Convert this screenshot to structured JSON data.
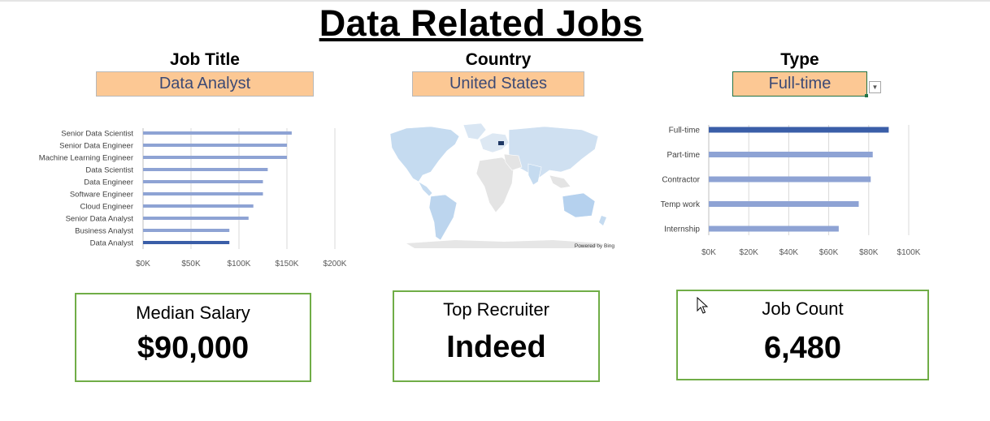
{
  "dashboard": {
    "title": "Data Related Jobs"
  },
  "slicers": {
    "job_title": {
      "label": "Job Title",
      "value": "Data Analyst"
    },
    "country": {
      "label": "Country",
      "value": "United States"
    },
    "type": {
      "label": "Type",
      "value": "Full-time"
    }
  },
  "map": {
    "attribution": "Powered by Bing"
  },
  "colors": {
    "bar": "#8ea3d4",
    "highlight": "#3a5ea8",
    "accent_border": "#70ad47",
    "slicer_fill": "#fcc894"
  },
  "chart_data": [
    {
      "type": "bar",
      "orientation": "horizontal",
      "categories": [
        "Senior Data Scientist",
        "Senior Data Engineer",
        "Machine Learning Engineer",
        "Data Scientist",
        "Data Engineer",
        "Software Engineer",
        "Cloud Engineer",
        "Senior Data Analyst",
        "Business Analyst",
        "Data Analyst"
      ],
      "values": [
        155000,
        150000,
        150000,
        130000,
        125000,
        125000,
        115000,
        110000,
        90000,
        90000
      ],
      "highlight": "Data Analyst",
      "xlim": [
        0,
        200000
      ],
      "ticks": [
        "$0K",
        "$50K",
        "$100K",
        "$150K",
        "$200K"
      ],
      "grid": true
    },
    {
      "type": "bar",
      "orientation": "horizontal",
      "categories": [
        "Full-time",
        "Part-time",
        "Contractor",
        "Temp work",
        "Internship"
      ],
      "values": [
        90000,
        82000,
        81000,
        75000,
        65000
      ],
      "highlight": "Full-time",
      "xlim": [
        0,
        100000
      ],
      "ticks": [
        "$0K",
        "$20K",
        "$40K",
        "$60K",
        "$80K",
        "$100K"
      ],
      "grid": true
    }
  ],
  "cards": {
    "median_salary": {
      "label": "Median Salary",
      "value": "$90,000"
    },
    "top_recruiter": {
      "label": "Top Recruiter",
      "value": "Indeed"
    },
    "job_count": {
      "label": "Job Count",
      "value": "6,480"
    }
  }
}
